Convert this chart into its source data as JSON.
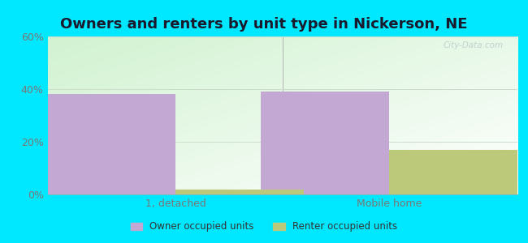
{
  "title": "Owners and renters by unit type in Nickerson, NE",
  "categories": [
    "1, detached",
    "Mobile home"
  ],
  "owner_values": [
    38.0,
    39.0
  ],
  "renter_values": [
    2.0,
    17.0
  ],
  "owner_color": "#c4a8d4",
  "renter_color": "#bcc87a",
  "ylim": [
    0,
    60
  ],
  "yticks": [
    0,
    20,
    40,
    60
  ],
  "yticklabels": [
    "0%",
    "20%",
    "40%",
    "60%"
  ],
  "bar_width": 0.3,
  "outer_background": "#00e8ff",
  "plot_bg_topleft": "#cce8cc",
  "plot_bg_bottomright": "#f8fff8",
  "legend_labels": [
    "Owner occupied units",
    "Renter occupied units"
  ],
  "watermark": "City-Data.com",
  "title_fontsize": 13,
  "axis_fontsize": 9,
  "group_positions": [
    0.25,
    0.75
  ]
}
